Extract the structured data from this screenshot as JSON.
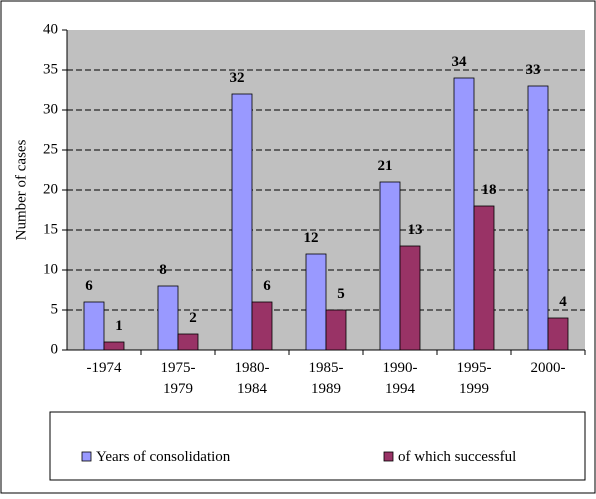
{
  "chart_data": {
    "type": "bar",
    "y_label": "Number of cases",
    "categories": [
      [
        "-1974"
      ],
      [
        "1975-",
        "1979"
      ],
      [
        "1980-",
        "1984"
      ],
      [
        "1985-",
        "1989"
      ],
      [
        "1990-",
        "1994"
      ],
      [
        "1995-",
        "1999"
      ],
      [
        "2000-"
      ]
    ],
    "series": [
      {
        "name": "Years of consolidation",
        "color": "#9999ff",
        "values": [
          6,
          8,
          32,
          12,
          21,
          34,
          33
        ]
      },
      {
        "name": "of which successful",
        "color": "#993366",
        "values": [
          1,
          2,
          6,
          5,
          13,
          18,
          4
        ]
      }
    ],
    "ylim": [
      0,
      40
    ],
    "yticks": [
      0,
      5,
      10,
      15,
      20,
      25,
      30,
      35,
      40
    ],
    "grid": true,
    "plot_background": "#c0c0c0",
    "legend": "bottom"
  }
}
